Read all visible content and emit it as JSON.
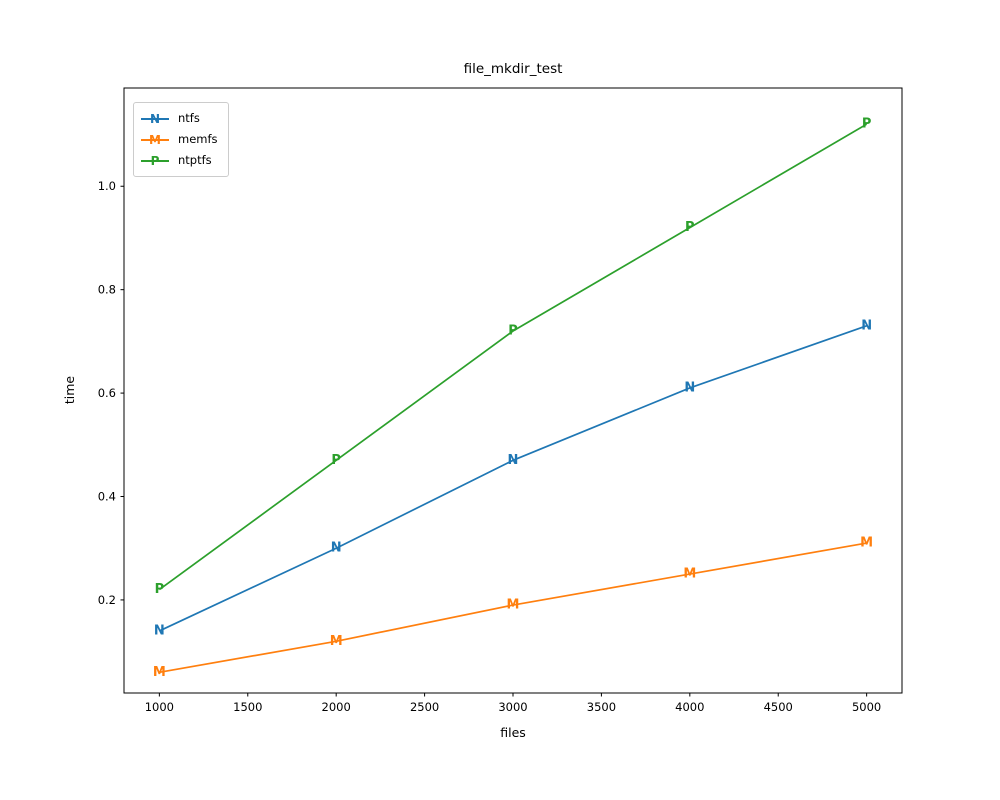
{
  "figure": {
    "background": "#ffffff",
    "text_color": "#000000",
    "spine_color": "#000000"
  },
  "chart_data": {
    "type": "line",
    "title": "file_mkdir_test",
    "xlabel": "files",
    "ylabel": "time",
    "x": [
      1000,
      2000,
      3000,
      4000,
      5000
    ],
    "series": [
      {
        "name": "ntfs",
        "marker": "N",
        "color": "#1f77b4",
        "values": [
          0.14,
          0.3,
          0.47,
          0.61,
          0.73
        ]
      },
      {
        "name": "memfs",
        "marker": "M",
        "color": "#ff7f0e",
        "values": [
          0.06,
          0.12,
          0.19,
          0.25,
          0.31
        ]
      },
      {
        "name": "ntptfs",
        "marker": "P",
        "color": "#2ca02c",
        "values": [
          0.22,
          0.47,
          0.72,
          0.92,
          1.12
        ]
      }
    ],
    "x_ticks": [
      1000,
      1500,
      2000,
      2500,
      3000,
      3500,
      4000,
      4500,
      5000
    ],
    "y_ticks": [
      0.2,
      0.4,
      0.6,
      0.8,
      1.0
    ],
    "xlim": [
      800,
      5200
    ],
    "ylim": [
      0.02,
      1.19
    ],
    "grid": false,
    "legend_position": "upper-left",
    "legend_labels": [
      "ntfs",
      "memfs",
      "ntptfs"
    ]
  }
}
